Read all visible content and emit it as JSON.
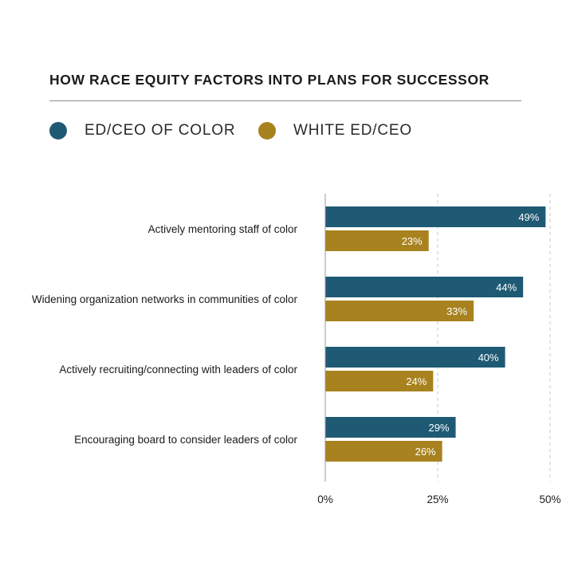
{
  "chart_data": {
    "type": "bar",
    "orientation": "horizontal",
    "title": "HOW RACE EQUITY FACTORS INTO PLANS FOR SUCCESSOR",
    "categories": [
      "Actively  mentoring staff of color",
      "Widening organization networks in communities of color",
      "Actively recruiting/connecting with leaders of color",
      "Encouraging board to consider leaders of color"
    ],
    "series": [
      {
        "name": "ED/CEO OF COLOR",
        "color": "#1f5a74",
        "values": [
          49,
          44,
          40,
          29
        ],
        "labels": [
          "49%",
          "44%",
          "40%",
          "29%"
        ]
      },
      {
        "name": "WHITE ED/CEO",
        "color": "#a8821f",
        "values": [
          23,
          33,
          24,
          26
        ],
        "labels": [
          "23%",
          "33%",
          "24%",
          "26%"
        ]
      }
    ],
    "xlim": [
      0,
      50
    ],
    "ticks": [
      0,
      25,
      50
    ],
    "tick_labels": [
      "0%",
      "25%",
      "50%"
    ],
    "grid": "dashed vertical",
    "legend": "top-left"
  }
}
